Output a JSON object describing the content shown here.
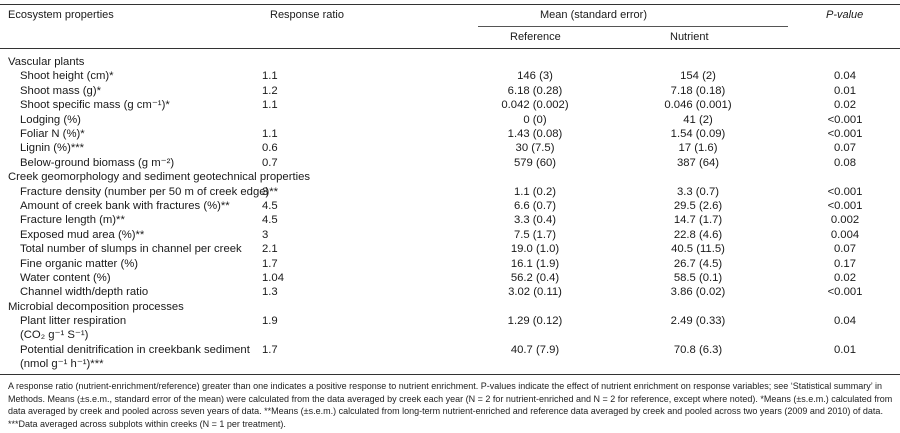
{
  "header": {
    "col_label": "Ecosystem properties",
    "col_rr": "Response ratio",
    "col_mean": "Mean (standard error)",
    "col_ref": "Reference",
    "col_nut": "Nutrient",
    "col_p": "P-value"
  },
  "sections": [
    {
      "title": "Vascular plants",
      "rows": [
        {
          "label": "Shoot height (cm)*",
          "rr": "1.1",
          "ref": "146 (3)",
          "nut": "154 (2)",
          "p": "0.04"
        },
        {
          "label": "Shoot mass (g)*",
          "rr": "1.2",
          "ref": "6.18 (0.28)",
          "nut": "7.18 (0.18)",
          "p": "0.01"
        },
        {
          "label": "Shoot specific mass (g cm⁻¹)*",
          "rr": "1.1",
          "ref": "0.042 (0.002)",
          "nut": "0.046 (0.001)",
          "p": "0.02"
        },
        {
          "label": "Lodging (%)",
          "rr": "",
          "ref": "0 (0)",
          "nut": "41 (2)",
          "p": "<0.001"
        },
        {
          "label": "Foliar N (%)*",
          "rr": "1.1",
          "ref": "1.43 (0.08)",
          "nut": "1.54 (0.09)",
          "p": "<0.001"
        },
        {
          "label": "Lignin (%)***",
          "rr": "0.6",
          "ref": "30 (7.5)",
          "nut": "17 (1.6)",
          "p": "0.07"
        },
        {
          "label": "Below-ground biomass (g m⁻²)",
          "rr": "0.7",
          "ref": "579 (60)",
          "nut": "387 (64)",
          "p": "0.08"
        }
      ]
    },
    {
      "title": "Creek geomorphology and sediment geotechnical properties",
      "rows": [
        {
          "label": "Fracture density (number per 50 m of creek edge)**",
          "rr": "3",
          "ref": "1.1 (0.2)",
          "nut": "3.3 (0.7)",
          "p": "<0.001"
        },
        {
          "label": "Amount of creek bank with fractures (%)**",
          "rr": "4.5",
          "ref": "6.6 (0.7)",
          "nut": "29.5 (2.6)",
          "p": "<0.001"
        },
        {
          "label": "Fracture length (m)**",
          "rr": "4.5",
          "ref": "3.3 (0.4)",
          "nut": "14.7 (1.7)",
          "p": "0.002"
        },
        {
          "label": "Exposed mud area (%)**",
          "rr": "3",
          "ref": "7.5 (1.7)",
          "nut": "22.8 (4.6)",
          "p": "0.004"
        },
        {
          "label": "Total number of slumps in channel per creek",
          "rr": "2.1",
          "ref": "19.0 (1.0)",
          "nut": "40.5 (11.5)",
          "p": "0.07"
        },
        {
          "label": "Fine organic matter (%)",
          "rr": "1.7",
          "ref": "16.1 (1.9)",
          "nut": "26.7 (4.5)",
          "p": "0.17"
        },
        {
          "label": "Water content (%)",
          "rr": "1.04",
          "ref": "56.2 (0.4)",
          "nut": "58.5 (0.1)",
          "p": "0.02"
        },
        {
          "label": "Channel width/depth ratio",
          "rr": "1.3",
          "ref": "3.02 (0.11)",
          "nut": "3.86 (0.02)",
          "p": "<0.001"
        }
      ]
    },
    {
      "title": "Microbial decomposition processes",
      "rows": [
        {
          "label": "Plant litter respiration",
          "label2": "(CO₂ g⁻¹ S⁻¹)",
          "rr": "1.9",
          "ref": "1.29 (0.12)",
          "nut": "2.49 (0.33)",
          "p": "0.04"
        },
        {
          "label": "Potential denitrification in creekbank sediment",
          "label2": "(nmol g⁻¹ h⁻¹)***",
          "rr": "1.7",
          "ref": "40.7 (7.9)",
          "nut": "70.8 (6.3)",
          "p": "0.01"
        }
      ]
    }
  ],
  "footnote": "A response ratio (nutrient-enrichment/reference) greater than one indicates a positive response to nutrient enrichment. P-values indicate the effect of nutrient enrichment on response variables; see ‘Statistical summary’ in Methods. Means (±s.e.m., standard error of the mean) were calculated from the data averaged by creek each year (N = 2 for nutrient-enriched and N = 2 for reference, except where noted). *Means (±s.e.m.) calculated from data averaged by creek and pooled across seven years of data. **Means (±s.e.m.) calculated from long-term nutrient-enriched and reference data averaged by creek and pooled across two years (2009 and 2010) of data. ***Data averaged across subplots within creeks (N = 1 per treatment)."
}
